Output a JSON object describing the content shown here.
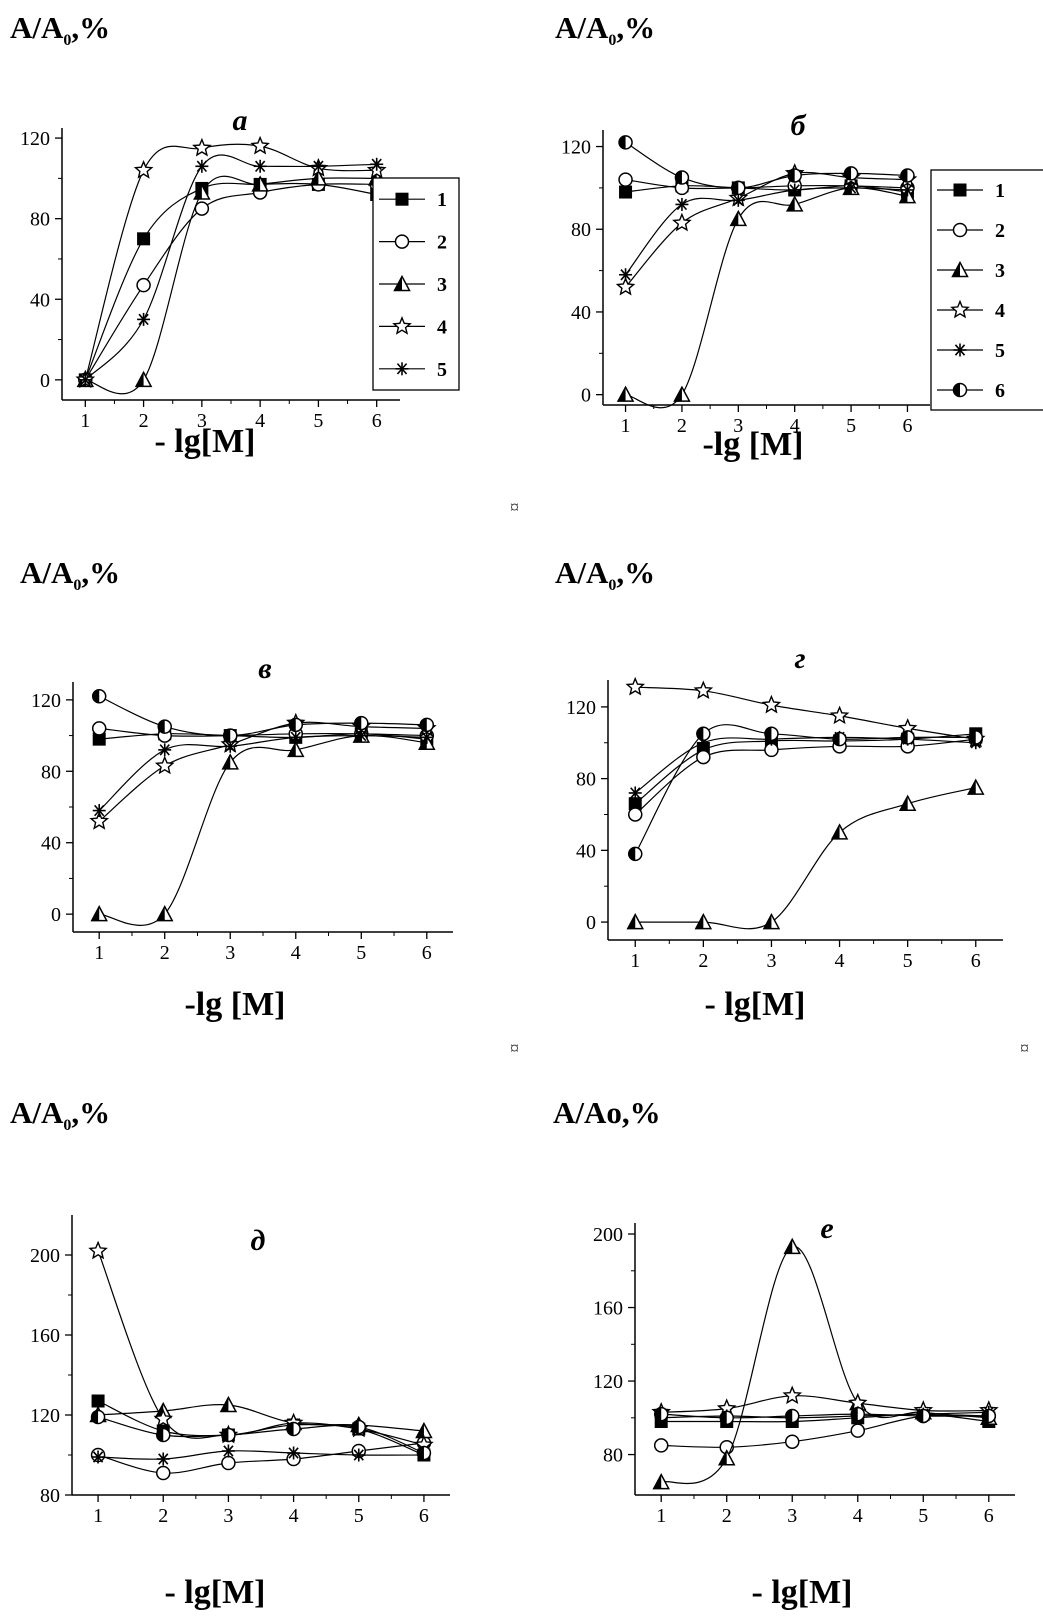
{
  "panels": [
    {
      "id": "a",
      "ytitle_main": "A/A",
      "ytitle_sub": "0",
      "ytitle_tail": ",%",
      "chart_data": {
        "type": "scatter",
        "title": "а",
        "xlabel": "- lg[M]",
        "ylabel": "A/A0,%",
        "xlim": [
          0.6,
          6.4
        ],
        "ylim": [
          -10,
          125
        ],
        "xticks": [
          1,
          2,
          3,
          4,
          5,
          6
        ],
        "yticks": [
          0,
          40,
          80,
          120
        ],
        "legend": "right",
        "legend_labels": [
          "1",
          "2",
          "3",
          "4",
          "5"
        ],
        "series": [
          {
            "name": "1",
            "marker": "square-filled",
            "x": [
              1,
              2,
              3,
              4,
              5,
              6
            ],
            "y": [
              0,
              70,
              95,
              97,
              97,
              92
            ]
          },
          {
            "name": "2",
            "marker": "circle-open",
            "x": [
              1,
              2,
              3,
              4,
              5,
              6
            ],
            "y": [
              0,
              47,
              85,
              93,
              97,
              97
            ]
          },
          {
            "name": "3",
            "marker": "triangle-half",
            "x": [
              1,
              2,
              3,
              4,
              5,
              6
            ],
            "y": [
              0,
              0,
              93,
              97,
              100,
              100
            ]
          },
          {
            "name": "4",
            "marker": "star-open",
            "x": [
              1,
              2,
              3,
              4,
              5,
              6
            ],
            "y": [
              0,
              104,
              115,
              116,
              105,
              104
            ]
          },
          {
            "name": "5",
            "marker": "asterisk",
            "x": [
              1,
              2,
              3,
              4,
              5,
              6
            ],
            "y": [
              0,
              30,
              106,
              106,
              106,
              107
            ]
          }
        ]
      }
    },
    {
      "id": "b",
      "ytitle_main": "A/A",
      "ytitle_sub": "0",
      "ytitle_tail": ",%",
      "chart_data": {
        "type": "scatter",
        "title": "б",
        "xlabel": "-lg [M]",
        "ylabel": "A/A0,%",
        "xlim": [
          0.6,
          6.4
        ],
        "ylim": [
          -5,
          128
        ],
        "xticks": [
          1,
          2,
          3,
          4,
          5,
          6
        ],
        "yticks": [
          0,
          40,
          80,
          120
        ],
        "legend": "right",
        "legend_labels": [
          "1",
          "2",
          "3",
          "4",
          "5",
          "6"
        ],
        "series": [
          {
            "name": "1",
            "marker": "square-filled",
            "x": [
              1,
              2,
              3,
              4,
              5,
              6
            ],
            "y": [
              98,
              101,
              100,
              99,
              101,
              98
            ]
          },
          {
            "name": "2",
            "marker": "circle-open",
            "x": [
              1,
              2,
              3,
              4,
              5,
              6
            ],
            "y": [
              104,
              100,
              100,
              101,
              101,
              100
            ]
          },
          {
            "name": "3",
            "marker": "triangle-half",
            "x": [
              1,
              2,
              3,
              4,
              5,
              6
            ],
            "y": [
              0,
              0,
              85,
              92,
              100,
              96
            ]
          },
          {
            "name": "4",
            "marker": "star-open",
            "x": [
              1,
              2,
              3,
              4,
              5,
              6
            ],
            "y": [
              52,
              83,
              95,
              107,
              105,
              104
            ]
          },
          {
            "name": "5",
            "marker": "asterisk",
            "x": [
              1,
              2,
              3,
              4,
              5,
              6
            ],
            "y": [
              58,
              92,
              94,
              99,
              100,
              99
            ]
          },
          {
            "name": "6",
            "marker": "circle-half",
            "x": [
              1,
              2,
              3,
              4,
              5,
              6
            ],
            "y": [
              122,
              105,
              100,
              106,
              107,
              106
            ]
          }
        ]
      }
    },
    {
      "id": "v",
      "ytitle_main": "A/A",
      "ytitle_sub": "0",
      "ytitle_tail": ",%",
      "chart_data": {
        "type": "scatter",
        "title": "в",
        "xlabel": "-lg  [M]",
        "ylabel": "A/A0,%",
        "xlim": [
          0.6,
          6.4
        ],
        "ylim": [
          -10,
          130
        ],
        "xticks": [
          1,
          2,
          3,
          4,
          5,
          6
        ],
        "yticks": [
          0,
          40,
          80,
          120
        ],
        "series": [
          {
            "name": "1",
            "marker": "square-filled",
            "x": [
              1,
              2,
              3,
              4,
              5,
              6
            ],
            "y": [
              98,
              101,
              100,
              99,
              101,
              98
            ]
          },
          {
            "name": "2",
            "marker": "circle-open",
            "x": [
              1,
              2,
              3,
              4,
              5,
              6
            ],
            "y": [
              104,
              100,
              100,
              101,
              101,
              100
            ]
          },
          {
            "name": "3",
            "marker": "triangle-half",
            "x": [
              1,
              2,
              3,
              4,
              5,
              6
            ],
            "y": [
              0,
              0,
              85,
              92,
              100,
              96
            ]
          },
          {
            "name": "4",
            "marker": "star-open",
            "x": [
              1,
              2,
              3,
              4,
              5,
              6
            ],
            "y": [
              52,
              83,
              95,
              107,
              105,
              104
            ]
          },
          {
            "name": "5",
            "marker": "asterisk",
            "x": [
              1,
              2,
              3,
              4,
              5,
              6
            ],
            "y": [
              58,
              92,
              94,
              99,
              100,
              99
            ]
          },
          {
            "name": "6",
            "marker": "circle-half",
            "x": [
              1,
              2,
              3,
              4,
              5,
              6
            ],
            "y": [
              122,
              105,
              100,
              106,
              107,
              106
            ]
          }
        ]
      }
    },
    {
      "id": "g",
      "ytitle_main": "A/A",
      "ytitle_sub": "0",
      "ytitle_tail": ",%",
      "chart_data": {
        "type": "scatter",
        "title": "г",
        "xlabel": "- lg[M]",
        "ylabel": "A/A0,%",
        "xlim": [
          0.6,
          6.4
        ],
        "ylim": [
          -10,
          135
        ],
        "xticks": [
          1,
          2,
          3,
          4,
          5,
          6
        ],
        "yticks": [
          0,
          40,
          80,
          120
        ],
        "series": [
          {
            "name": "1",
            "marker": "square-filled",
            "x": [
              1,
              2,
              3,
              4,
              5,
              6
            ],
            "y": [
              66,
              96,
              101,
              101,
              102,
              105
            ]
          },
          {
            "name": "2",
            "marker": "circle-open",
            "x": [
              1,
              2,
              3,
              4,
              5,
              6
            ],
            "y": [
              60,
              92,
              96,
              98,
              98,
              102
            ]
          },
          {
            "name": "3",
            "marker": "triangle-half",
            "x": [
              1,
              2,
              3,
              4,
              5,
              6
            ],
            "y": [
              0,
              0,
              0,
              50,
              66,
              75
            ]
          },
          {
            "name": "4",
            "marker": "star-open",
            "x": [
              1,
              2,
              3,
              4,
              5,
              6
            ],
            "y": [
              131,
              129,
              121,
              115,
              108,
              102
            ]
          },
          {
            "name": "5",
            "marker": "asterisk",
            "x": [
              1,
              2,
              3,
              4,
              5,
              6
            ],
            "y": [
              72,
              100,
              102,
              103,
              102,
              100
            ]
          },
          {
            "name": "6",
            "marker": "circle-half",
            "x": [
              1,
              2,
              3,
              4,
              5,
              6
            ],
            "y": [
              38,
              105,
              105,
              102,
              103,
              103
            ]
          }
        ]
      }
    },
    {
      "id": "d",
      "ytitle_main": "A/A",
      "ytitle_sub": "0",
      "ytitle_tail": ",%",
      "chart_data": {
        "type": "scatter",
        "title": "д",
        "xlabel": "- lg[M]",
        "ylabel": "A/A0,%",
        "xlim": [
          0.6,
          6.4
        ],
        "ylim": [
          80,
          220
        ],
        "xticks": [
          1,
          2,
          3,
          4,
          5,
          6
        ],
        "yticks": [
          80,
          120,
          160,
          200
        ],
        "series": [
          {
            "name": "1",
            "marker": "square-filled",
            "x": [
              1,
              2,
              3,
              4,
              5,
              6
            ],
            "y": [
              127,
              112,
              110,
              115,
              113,
              100
            ]
          },
          {
            "name": "2",
            "marker": "circle-open",
            "x": [
              1,
              2,
              3,
              4,
              5,
              6
            ],
            "y": [
              100,
              91,
              96,
              98,
              102,
              106
            ]
          },
          {
            "name": "3",
            "marker": "triangle-half",
            "x": [
              1,
              2,
              3,
              4,
              5,
              6
            ],
            "y": [
              120,
              122,
              125,
              116,
              115,
              112
            ]
          },
          {
            "name": "4",
            "marker": "star-open",
            "x": [
              1,
              2,
              3,
              4,
              5,
              6
            ],
            "y": [
              202,
              118,
              110,
              116,
              113,
              105
            ]
          },
          {
            "name": "5",
            "marker": "asterisk",
            "x": [
              1,
              2,
              3,
              4,
              5,
              6
            ],
            "y": [
              99,
              98,
              102,
              101,
              100,
              100
            ]
          },
          {
            "name": "6",
            "marker": "circle-half",
            "x": [
              1,
              2,
              3,
              4,
              5,
              6
            ],
            "y": [
              119,
              110,
              110,
              113,
              114,
              101
            ]
          }
        ]
      }
    },
    {
      "id": "e",
      "ytitle_main": "A/A",
      "ytitle_sub": "",
      "ytitle_tail": "o,%",
      "chart_data": {
        "type": "scatter",
        "title": "е",
        "xlabel": "- lg[M]",
        "ylabel": "A/Ao,%",
        "xlim": [
          0.6,
          6.4
        ],
        "ylim": [
          58,
          206
        ],
        "xticks": [
          1,
          2,
          3,
          4,
          5,
          6
        ],
        "yticks": [
          80,
          120,
          160,
          200
        ],
        "series": [
          {
            "name": "1",
            "marker": "square-filled",
            "x": [
              1,
              2,
              3,
              4,
              5,
              6
            ],
            "y": [
              98,
              98,
              98,
              100,
              102,
              98
            ]
          },
          {
            "name": "2",
            "marker": "circle-open",
            "x": [
              1,
              2,
              3,
              4,
              5,
              6
            ],
            "y": [
              85,
              84,
              87,
              93,
              101,
              101
            ]
          },
          {
            "name": "3",
            "marker": "triangle-half",
            "x": [
              1,
              2,
              3,
              4,
              5,
              6
            ],
            "y": [
              65,
              78,
              193,
              108,
              103,
              100
            ]
          },
          {
            "name": "4",
            "marker": "star-open",
            "x": [
              1,
              2,
              3,
              4,
              5,
              6
            ],
            "y": [
              103,
              105,
              112,
              108,
              104,
              104
            ]
          },
          {
            "name": "5",
            "marker": "asterisk",
            "x": [
              1,
              2,
              3,
              4,
              5,
              6
            ],
            "y": [
              100,
              101,
              100,
              101,
              102,
              103
            ]
          },
          {
            "name": "6",
            "marker": "circle-half",
            "x": [
              1,
              2,
              3,
              4,
              5,
              6
            ],
            "y": [
              102,
              100,
              101,
              102,
              101,
              101
            ]
          }
        ]
      }
    }
  ],
  "separators": [
    "¤",
    "¤",
    "¤"
  ]
}
